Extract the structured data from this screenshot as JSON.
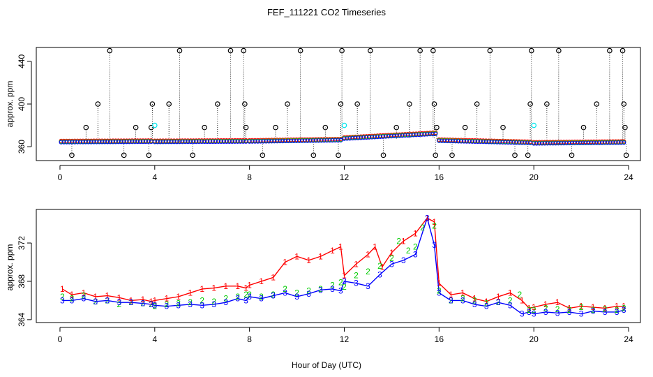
{
  "chart_data": [
    {
      "type": "scatter",
      "panel": "top",
      "title": "FEF_111221  CO2 Timeseries",
      "ylabel": "approx. ppm",
      "xlabel": "",
      "xlim": [
        -1,
        24.5
      ],
      "ylim": [
        347,
        453
      ],
      "xticks": [
        0,
        4,
        8,
        12,
        16,
        20,
        24
      ],
      "yticks": [
        360,
        400,
        440
      ],
      "colors": {
        "raw": "#000000",
        "s1": "#ff0000",
        "s2": "#00cc00",
        "s3": "#0000ff",
        "cal": "#00e5ee"
      },
      "segments": [
        {
          "start": 0.05,
          "end": 3.85,
          "y0": 364.2,
          "y1": 364.6
        },
        {
          "start": 4.0,
          "end": 7.85,
          "y0": 364.4,
          "y1": 364.8
        },
        {
          "start": 8.0,
          "end": 11.85,
          "y0": 364.8,
          "y1": 366.0
        },
        {
          "start": 12.0,
          "end": 15.85,
          "y0": 367.5,
          "y1": 372.0
        },
        {
          "start": 16.0,
          "end": 19.85,
          "y0": 365.5,
          "y1": 363.5
        },
        {
          "start": 20.0,
          "end": 23.8,
          "y0": 363.0,
          "y1": 363.8
        }
      ],
      "raw_spikes": [
        [
          0.5,
          352
        ],
        [
          1.1,
          378
        ],
        [
          1.6,
          400
        ],
        [
          2.1,
          450
        ],
        [
          2.7,
          352
        ],
        [
          3.2,
          378
        ],
        [
          3.75,
          352
        ],
        [
          3.85,
          378
        ],
        [
          3.9,
          400
        ],
        [
          4.6,
          400
        ],
        [
          5.05,
          450
        ],
        [
          5.6,
          352
        ],
        [
          6.1,
          378
        ],
        [
          6.65,
          400
        ],
        [
          7.2,
          450
        ],
        [
          7.75,
          450
        ],
        [
          7.8,
          400
        ],
        [
          7.85,
          378
        ],
        [
          8.55,
          352
        ],
        [
          9.1,
          378
        ],
        [
          9.6,
          400
        ],
        [
          10.15,
          450
        ],
        [
          10.7,
          352
        ],
        [
          11.2,
          378
        ],
        [
          11.75,
          352
        ],
        [
          11.85,
          400
        ],
        [
          11.9,
          450
        ],
        [
          12.55,
          400
        ],
        [
          13.1,
          450
        ],
        [
          13.65,
          352
        ],
        [
          14.2,
          378
        ],
        [
          14.75,
          400
        ],
        [
          15.2,
          450
        ],
        [
          15.75,
          450
        ],
        [
          15.8,
          400
        ],
        [
          15.85,
          352
        ],
        [
          15.9,
          378
        ],
        [
          16.55,
          352
        ],
        [
          17.1,
          378
        ],
        [
          17.6,
          400
        ],
        [
          18.15,
          450
        ],
        [
          18.7,
          378
        ],
        [
          19.2,
          352
        ],
        [
          19.75,
          352
        ],
        [
          19.85,
          400
        ],
        [
          19.9,
          450
        ],
        [
          20.55,
          400
        ],
        [
          21.05,
          450
        ],
        [
          21.6,
          352
        ],
        [
          22.1,
          378
        ],
        [
          22.65,
          400
        ],
        [
          23.2,
          450
        ],
        [
          23.75,
          450
        ],
        [
          23.8,
          400
        ],
        [
          23.85,
          378
        ],
        [
          23.9,
          352
        ]
      ],
      "cal_points": [
        [
          4.0,
          380
        ],
        [
          12.0,
          380
        ],
        [
          20.0,
          380
        ]
      ]
    },
    {
      "type": "scatter",
      "panel": "bottom",
      "ylabel": "approx. ppm",
      "xlabel": "Hour of Day (UTC)",
      "xlim": [
        -1,
        24.5
      ],
      "ylim": [
        363.7,
        375.5
      ],
      "xticks": [
        0,
        4,
        8,
        12,
        16,
        20,
        24
      ],
      "yticks": [
        364,
        368,
        372
      ],
      "colors": {
        "s1": "#ff0000",
        "s2": "#00cc00",
        "s3": "#0000ff"
      },
      "series": [
        {
          "name": "1",
          "line": true,
          "values": [
            [
              0.1,
              367.2
            ],
            [
              0.5,
              366.6
            ],
            [
              1.0,
              366.8
            ],
            [
              1.5,
              366.4
            ],
            [
              2.0,
              366.5
            ],
            [
              2.5,
              366.3
            ],
            [
              3.0,
              366.0
            ],
            [
              3.5,
              366.1
            ],
            [
              3.85,
              365.9
            ],
            [
              4.0,
              366.0
            ],
            [
              4.5,
              366.2
            ],
            [
              5.0,
              366.4
            ],
            [
              5.5,
              366.8
            ],
            [
              6.0,
              367.2
            ],
            [
              6.5,
              367.3
            ],
            [
              7.0,
              367.5
            ],
            [
              7.5,
              367.5
            ],
            [
              7.85,
              367.3
            ],
            [
              8.0,
              367.6
            ],
            [
              8.5,
              368.0
            ],
            [
              9.0,
              368.4
            ],
            [
              9.5,
              370.0
            ],
            [
              10.0,
              370.6
            ],
            [
              10.5,
              370.2
            ],
            [
              11.0,
              370.6
            ],
            [
              11.5,
              371.2
            ],
            [
              11.85,
              371.6
            ],
            [
              12.0,
              368.6
            ],
            [
              12.5,
              369.8
            ],
            [
              13.0,
              370.8
            ],
            [
              13.3,
              371.6
            ],
            [
              13.6,
              369.5
            ],
            [
              14.0,
              371.0
            ],
            [
              14.5,
              372.2
            ],
            [
              15.0,
              373.0
            ],
            [
              15.5,
              374.6
            ],
            [
              15.8,
              374.2
            ],
            [
              16.0,
              367.8
            ],
            [
              16.5,
              366.6
            ],
            [
              17.0,
              366.8
            ],
            [
              17.5,
              366.2
            ],
            [
              18.0,
              365.9
            ],
            [
              18.5,
              366.4
            ],
            [
              19.0,
              366.8
            ],
            [
              19.5,
              366.0
            ],
            [
              19.8,
              365.2
            ],
            [
              20.0,
              365.3
            ],
            [
              20.5,
              365.6
            ],
            [
              21.0,
              365.8
            ],
            [
              21.5,
              365.2
            ],
            [
              22.0,
              365.4
            ],
            [
              22.5,
              365.3
            ],
            [
              23.0,
              365.2
            ],
            [
              23.5,
              365.4
            ],
            [
              23.8,
              365.4
            ]
          ]
        },
        {
          "name": "2",
          "line": false,
          "values": [
            [
              0.1,
              366.4
            ],
            [
              0.5,
              366.2
            ],
            [
              1.0,
              366.5
            ],
            [
              1.5,
              365.9
            ],
            [
              2.0,
              366.0
            ],
            [
              2.5,
              365.6
            ],
            [
              3.0,
              365.8
            ],
            [
              3.5,
              365.7
            ],
            [
              3.85,
              365.6
            ],
            [
              4.0,
              365.4
            ],
            [
              4.5,
              365.6
            ],
            [
              5.0,
              365.7
            ],
            [
              5.5,
              365.8
            ],
            [
              6.0,
              366.0
            ],
            [
              6.5,
              365.9
            ],
            [
              7.0,
              366.2
            ],
            [
              7.5,
              366.4
            ],
            [
              7.85,
              366.6
            ],
            [
              8.0,
              366.6
            ],
            [
              8.5,
              366.4
            ],
            [
              9.0,
              366.6
            ],
            [
              9.5,
              367.2
            ],
            [
              10.0,
              366.8
            ],
            [
              10.5,
              367.0
            ],
            [
              11.0,
              367.2
            ],
            [
              11.5,
              367.6
            ],
            [
              11.85,
              367.9
            ],
            [
              12.0,
              367.4
            ],
            [
              12.5,
              368.6
            ],
            [
              13.0,
              369.0
            ],
            [
              13.5,
              369.6
            ],
            [
              14.0,
              370.4
            ],
            [
              14.3,
              372.2
            ],
            [
              14.7,
              371.2
            ],
            [
              15.0,
              371.6
            ],
            [
              15.3,
              373.6
            ],
            [
              15.8,
              373.8
            ],
            [
              16.0,
              367.0
            ],
            [
              16.5,
              366.0
            ],
            [
              17.0,
              366.2
            ],
            [
              17.5,
              366.0
            ],
            [
              18.0,
              365.7
            ],
            [
              18.5,
              365.8
            ],
            [
              19.0,
              366.0
            ],
            [
              19.4,
              366.6
            ],
            [
              19.8,
              365.0
            ],
            [
              20.0,
              365.0
            ],
            [
              20.5,
              365.2
            ],
            [
              21.0,
              365.1
            ],
            [
              21.5,
              365.0
            ],
            [
              22.0,
              365.3
            ],
            [
              22.5,
              365.0
            ],
            [
              23.0,
              365.1
            ],
            [
              23.5,
              365.0
            ],
            [
              23.8,
              365.2
            ]
          ]
        },
        {
          "name": "3",
          "line": true,
          "values": [
            [
              0.1,
              366.0
            ],
            [
              0.5,
              366.0
            ],
            [
              1.0,
              366.2
            ],
            [
              1.5,
              365.9
            ],
            [
              2.0,
              366.0
            ],
            [
              2.5,
              365.8
            ],
            [
              3.0,
              365.8
            ],
            [
              3.5,
              365.7
            ],
            [
              3.85,
              365.6
            ],
            [
              4.0,
              365.5
            ],
            [
              4.5,
              365.4
            ],
            [
              5.0,
              365.5
            ],
            [
              5.5,
              365.6
            ],
            [
              6.0,
              365.5
            ],
            [
              6.5,
              365.6
            ],
            [
              7.0,
              365.8
            ],
            [
              7.5,
              366.2
            ],
            [
              7.85,
              366.0
            ],
            [
              8.0,
              366.4
            ],
            [
              8.5,
              366.2
            ],
            [
              9.0,
              366.5
            ],
            [
              9.5,
              366.8
            ],
            [
              10.0,
              366.4
            ],
            [
              10.5,
              366.7
            ],
            [
              11.0,
              367.1
            ],
            [
              11.5,
              367.2
            ],
            [
              11.85,
              367.0
            ],
            [
              12.0,
              368.0
            ],
            [
              12.5,
              367.8
            ],
            [
              13.0,
              367.5
            ],
            [
              13.5,
              368.7
            ],
            [
              14.0,
              369.8
            ],
            [
              14.5,
              370.2
            ],
            [
              15.0,
              370.8
            ],
            [
              15.5,
              374.6
            ],
            [
              15.8,
              371.8
            ],
            [
              16.0,
              366.8
            ],
            [
              16.5,
              366.0
            ],
            [
              17.0,
              366.0
            ],
            [
              17.5,
              365.6
            ],
            [
              18.0,
              365.4
            ],
            [
              18.5,
              365.8
            ],
            [
              19.0,
              365.5
            ],
            [
              19.5,
              364.6
            ],
            [
              19.8,
              364.8
            ],
            [
              20.0,
              364.6
            ],
            [
              20.5,
              364.8
            ],
            [
              21.0,
              364.7
            ],
            [
              21.5,
              364.8
            ],
            [
              22.0,
              364.6
            ],
            [
              22.5,
              364.9
            ],
            [
              23.0,
              364.8
            ],
            [
              23.5,
              364.8
            ],
            [
              23.8,
              365.0
            ]
          ]
        }
      ]
    }
  ]
}
